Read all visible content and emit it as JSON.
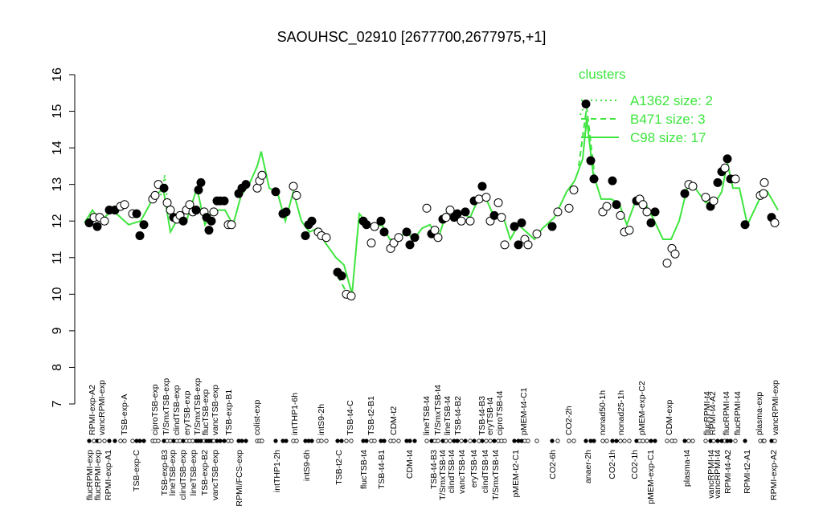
{
  "chart_data": {
    "type": "line",
    "title": "SAOUHSC_02910 [2677700,2677975,+1]",
    "ylim": [
      7,
      16
    ],
    "yticks": [
      7,
      8,
      9,
      10,
      11,
      12,
      13,
      14,
      15,
      16
    ],
    "xlim": [
      0,
      875
    ],
    "legend_title": "clusters",
    "legend_color": "#3ee53e",
    "points": {
      "x": [
        11,
        17,
        21,
        24,
        30,
        36,
        43,
        50,
        55,
        65,
        70,
        74,
        79,
        90,
        93,
        97,
        104,
        108,
        112,
        116,
        120,
        124,
        128,
        132,
        136,
        140,
        144,
        147,
        150,
        154,
        157,
        160,
        163,
        166,
        170,
        174,
        179,
        184,
        188,
        197,
        201,
        206,
        220,
        223,
        226,
        243,
        252,
        256,
        265,
        269,
        280,
        284,
        288,
        296,
        300,
        306,
        320,
        325,
        331,
        337,
        352,
        356,
        362,
        366,
        374,
        378,
        386,
        390,
        396,
        406,
        410,
        416,
        431,
        437,
        441,
        445,
        451,
        455,
        460,
        465,
        469,
        474,
        479,
        485,
        490,
        496,
        500,
        505,
        510,
        515,
        520,
        524,
        528,
        540,
        545,
        549,
        553,
        557,
        568,
        587,
        594,
        608,
        614,
        629,
        635,
        639,
        650,
        655,
        662,
        667,
        672,
        677,
        683,
        692,
        696,
        700,
        705,
        710,
        715,
        730,
        736,
        740,
        752,
        757,
        762,
        778,
        784,
        788,
        793,
        798,
        802,
        805,
        809,
        815,
        827,
        846,
        850,
        851,
        860,
        864
      ],
      "values": [
        11.95,
        12.1,
        11.85,
        12.1,
        12.0,
        12.3,
        12.3,
        12.4,
        12.45,
        12.2,
        12.2,
        11.6,
        11.9,
        12.6,
        12.7,
        13.0,
        12.9,
        12.5,
        12.3,
        12.1,
        12.05,
        12.15,
        12.0,
        12.3,
        12.45,
        12.25,
        12.3,
        12.85,
        13.05,
        12.25,
        12.1,
        11.75,
        12.0,
        12.25,
        12.55,
        12.55,
        12.55,
        11.9,
        11.9,
        12.75,
        12.9,
        13.0,
        12.9,
        13.1,
        13.25,
        12.8,
        12.2,
        12.25,
        12.95,
        12.7,
        11.6,
        11.9,
        12.0,
        11.7,
        11.6,
        11.55,
        10.6,
        10.5,
        10.0,
        9.95,
        12.0,
        11.9,
        11.4,
        11.85,
        12.0,
        11.7,
        11.25,
        11.4,
        11.55,
        11.7,
        11.35,
        11.55,
        12.35,
        11.65,
        11.75,
        11.55,
        12.05,
        12.1,
        12.3,
        12.1,
        12.2,
        12.0,
        12.25,
        12.0,
        12.55,
        12.6,
        12.95,
        12.65,
        12.0,
        12.15,
        12.5,
        12.1,
        11.35,
        11.85,
        11.35,
        11.95,
        11.5,
        11.35,
        11.65,
        11.85,
        12.25,
        12.35,
        12.85,
        15.2,
        13.65,
        13.15,
        12.25,
        12.4,
        13.1,
        12.45,
        12.15,
        11.7,
        11.75,
        12.55,
        12.6,
        12.45,
        12.25,
        11.95,
        12.25,
        10.85,
        11.25,
        11.1,
        12.75,
        13.0,
        12.95,
        12.65,
        12.4,
        12.55,
        13.05,
        13.35,
        13.45,
        13.7,
        13.15,
        13.15,
        11.9,
        12.7,
        12.75,
        13.05,
        12.1,
        11.95
      ],
      "filled": [
        true,
        false,
        true,
        false,
        false,
        true,
        true,
        false,
        false,
        false,
        true,
        true,
        true,
        false,
        false,
        false,
        true,
        false,
        false,
        true,
        false,
        false,
        true,
        false,
        false,
        false,
        true,
        true,
        true,
        false,
        true,
        true,
        true,
        false,
        true,
        true,
        true,
        false,
        false,
        true,
        true,
        true,
        false,
        false,
        false,
        true,
        true,
        true,
        false,
        false,
        true,
        true,
        true,
        false,
        false,
        false,
        true,
        true,
        false,
        false,
        true,
        true,
        false,
        false,
        true,
        true,
        false,
        false,
        false,
        true,
        true,
        true,
        false,
        true,
        false,
        false,
        true,
        false,
        false,
        true,
        true,
        false,
        true,
        false,
        true,
        false,
        true,
        false,
        false,
        true,
        false,
        false,
        false,
        true,
        true,
        true,
        false,
        false,
        false,
        true,
        false,
        false,
        false,
        true,
        true,
        true,
        false,
        false,
        true,
        true,
        false,
        false,
        false,
        true,
        false,
        false,
        false,
        true,
        true,
        false,
        false,
        false,
        true,
        false,
        false,
        false,
        true,
        false,
        true,
        true,
        false,
        true,
        true,
        false,
        true,
        false,
        false,
        false,
        true,
        false
      ],
      "color": "#000000"
    },
    "series": [
      {
        "name": "A1362 size: 2",
        "color": "#3ee53e",
        "dash": "2,4",
        "x": [
          100,
          105,
          110,
          null,
          622,
          628,
          635
        ],
        "values": [
          12.7,
          13.25,
          12.2,
          null,
          14.9,
          15.2,
          14.0
        ]
      },
      {
        "name": "B471 size: 3",
        "color": "#3ee53e",
        "dash": "7,5",
        "x": [
          95,
          105,
          null,
          320,
          330,
          null,
          620,
          630,
          640
        ],
        "values": [
          13.0,
          13.2,
          null,
          10.5,
          10.1,
          null,
          13.5,
          15.1,
          13.2
        ]
      },
      {
        "name": "C98 size: 17",
        "color": "#3ee53e",
        "dash": "none",
        "x": [
          5,
          15,
          25,
          40,
          60,
          75,
          90,
          103,
          112,
          122,
          132,
          145,
          155,
          165,
          180,
          190,
          200,
          210,
          220,
          225,
          235,
          245,
          255,
          265,
          275,
          285,
          295,
          305,
          318,
          328,
          338,
          347,
          355,
          365,
          375,
          385,
          395,
          405,
          415,
          425,
          435,
          445,
          455,
          465,
          475,
          485,
          495,
          505,
          515,
          525,
          535,
          545,
          555,
          565,
          575,
          590,
          605,
          615,
          625,
          630,
          638,
          648,
          660,
          670,
          680,
          690,
          700,
          712,
          725,
          735,
          745,
          755,
          765,
          778,
          790,
          798,
          805,
          812,
          820,
          830,
          845,
          855,
          868
        ],
        "values": [
          11.95,
          12.3,
          12.0,
          12.3,
          11.9,
          12.0,
          12.6,
          12.9,
          11.7,
          12.1,
          12.0,
          12.9,
          11.9,
          12.3,
          12.3,
          11.9,
          12.7,
          13.0,
          13.5,
          13.9,
          12.9,
          12.8,
          12.0,
          12.8,
          12.0,
          11.7,
          11.8,
          11.4,
          11.0,
          10.8,
          10.0,
          12.2,
          12.0,
          11.8,
          11.9,
          11.5,
          11.5,
          11.7,
          11.5,
          11.8,
          11.9,
          11.5,
          12.2,
          12.0,
          12.2,
          12.1,
          12.6,
          12.6,
          12.1,
          12.2,
          11.5,
          11.9,
          11.7,
          11.5,
          11.8,
          12.1,
          12.8,
          13.1,
          13.7,
          14.8,
          13.3,
          12.6,
          12.6,
          12.5,
          11.9,
          12.5,
          12.6,
          12.1,
          11.5,
          11.5,
          12.0,
          12.9,
          12.9,
          12.5,
          12.5,
          12.8,
          13.6,
          12.9,
          12.9,
          11.9,
          12.6,
          12.8,
          12.3
        ]
      }
    ],
    "top_labels": {
      "text": [
        "RPMI-exp-A2",
        "vancRPMI-exp",
        "TSB-exp-A",
        "ciproTSB-exp",
        "T/SmxTSB-exp",
        "clindTSB-exp",
        "eryTSB-exp",
        "T/SmxTSB-exp",
        "flucTSB-exp",
        "vancTSB-exp",
        "TSB-exp-B1",
        "colist-exp",
        "intTHP1-6h",
        "intS9-2h",
        "TSB-t4-C",
        "TSB-t2-B1",
        "CDM-t2",
        "lineTSB-t4",
        "T/SmxTSB-t4",
        "lineTSB-t4",
        "TSB-t4-B2",
        "TSB-t4-B3",
        "eryTSB-t4",
        "ciproTSB-t4",
        "pMEM-t4-C1",
        "CO2-2h",
        "nonad50-1h",
        "nonad25-1h",
        "pMEM-exp-C2",
        "CDM-exp",
        "flucRPMI-t4",
        "RPMI-t4-A2",
        "flucRPMI-t4",
        "flucRPMI-t4",
        "plasma-exp",
        "vancRPMI-exp"
      ],
      "x": [
        15,
        27,
        55,
        93,
        107,
        120,
        133,
        146,
        156,
        168,
        185,
        220,
        267,
        300,
        336,
        362,
        390,
        431,
        445,
        457,
        470,
        500,
        510,
        522,
        552,
        608,
        650,
        673,
        699,
        733,
        780,
        787,
        804,
        818,
        845,
        865
      ]
    },
    "bottom_labels": {
      "text": [
        "flucRPMI-exp",
        "flucRPMI-exp",
        "RPMI-exp-A1",
        "TSB-exp-C",
        "TSB-exp-B3",
        "lineTSB-exp",
        "clindTSB-exp",
        "lineTSB-exp",
        "TSB-exp-B2",
        "vancTSB-exp",
        "RPMI/FCS-exp",
        "intTHP1-2h",
        "intS9-6h",
        "TSB-t2-C",
        "flucTSB-t4",
        "TSB-t4-B1",
        "CDM-t4",
        "TSB-t4-B3",
        "T/SmxTSB-t4",
        "clindTSB-t4",
        "vancTSB-t4",
        "eryTSB-t4",
        "clindTSB-t4",
        "T/SmxTSB-t4",
        "pMEM-t2-C1",
        "CO2-6h",
        "anaer-2h",
        "CO2-1h",
        "CO2-1h",
        "pMEM-exp-C1",
        "plasma-t4",
        "vancRPMI-t4",
        "vancRPMI-t4",
        "RPMI-t4-A2",
        "RPMI-t2-A1",
        "RPMI-exp-A2"
      ],
      "x": [
        12,
        22,
        35,
        70,
        105,
        115,
        128,
        141,
        155,
        168,
        198,
        245,
        282,
        322,
        353,
        375,
        410,
        440,
        451,
        462,
        475,
        490,
        504,
        517,
        542,
        588,
        632,
        662,
        690,
        710,
        755,
        785,
        793,
        806,
        830,
        863
      ]
    }
  }
}
